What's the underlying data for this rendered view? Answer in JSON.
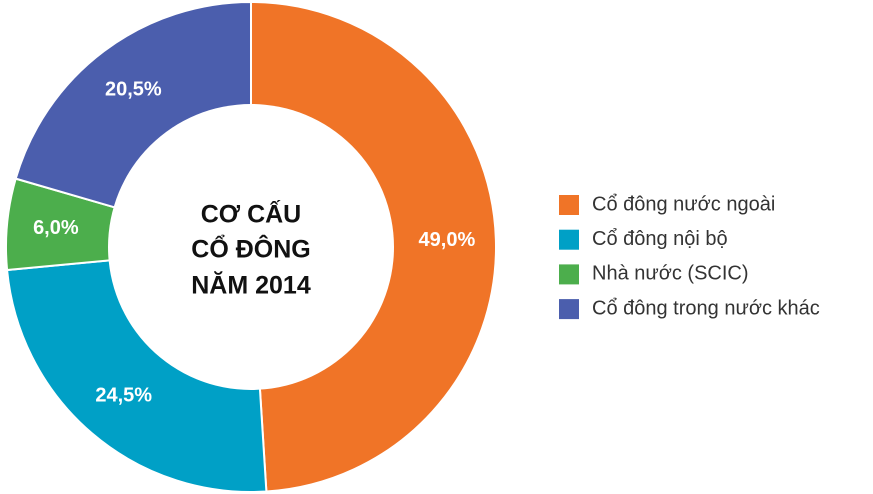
{
  "chart_data": {
    "type": "donut",
    "title": [
      "CƠ CẤU",
      "CỔ ĐÔNG",
      "NĂM 2014"
    ],
    "categories": [
      "Cổ đông nước ngoài",
      "Cổ đông nội bộ",
      "Nhà nước (SCIC)",
      "Cổ đông trong nước khác"
    ],
    "values": [
      49.0,
      24.5,
      6.0,
      20.5
    ],
    "value_labels": [
      "49,0%",
      "24,5%",
      "6,0%",
      "20,5%"
    ],
    "colors": [
      "#f07427",
      "#00a0c6",
      "#4cae4c",
      "#4b5ead"
    ],
    "legend": "right"
  }
}
